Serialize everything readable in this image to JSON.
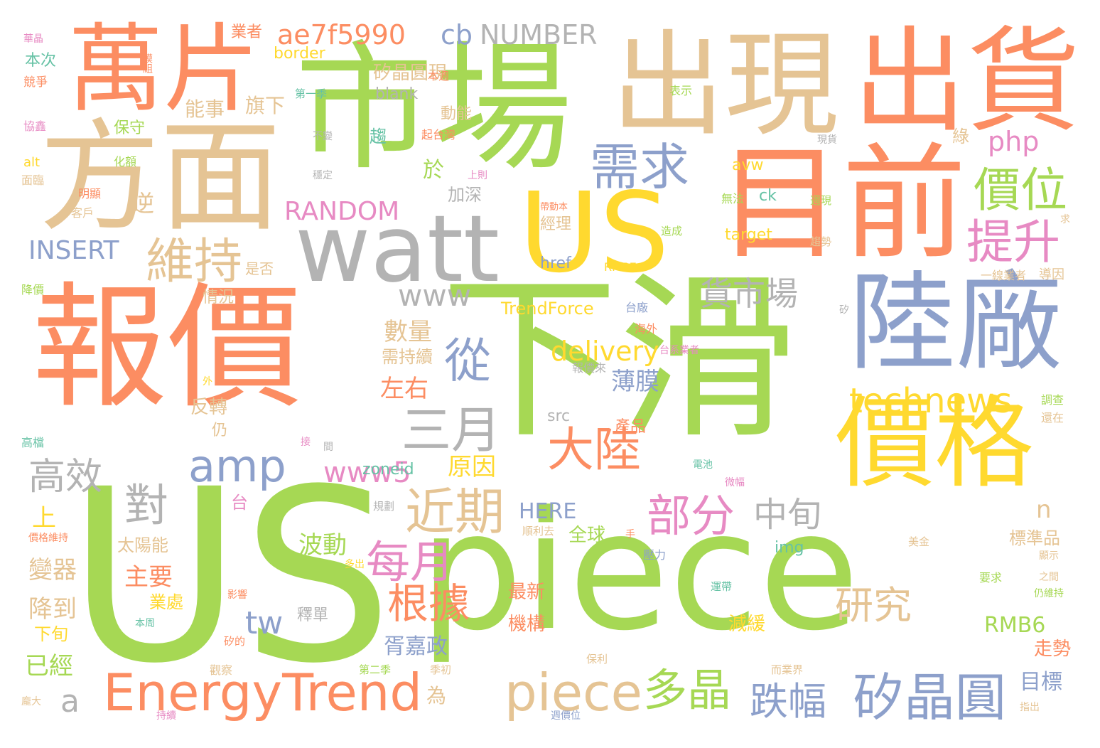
{
  "palette": {
    "orange": "#fc8d62",
    "green": "#a6d854",
    "tan": "#e5c494",
    "blue": "#8da0cb",
    "yellow": "#ffd92f",
    "gray": "#b3b3b3",
    "pink": "#e78ac3",
    "teal": "#66c2a5"
  },
  "words": [
    {
      "text": "US",
      "color": "green"
    },
    {
      "text": "piece",
      "color": "green"
    },
    {
      "text": "報價",
      "color": "orange"
    },
    {
      "text": "下滑",
      "color": "green"
    },
    {
      "text": "市場",
      "color": "green"
    },
    {
      "text": "方面",
      "color": "tan"
    },
    {
      "text": "萬片",
      "color": "orange"
    },
    {
      "text": "出現",
      "color": "tan"
    },
    {
      "text": "出貨",
      "color": "orange"
    },
    {
      "text": "目前",
      "color": "orange"
    },
    {
      "text": "US",
      "color": "yellow"
    },
    {
      "text": "watt",
      "color": "gray"
    },
    {
      "text": "陸廠",
      "color": "blue"
    },
    {
      "text": "價格",
      "color": "yellow"
    },
    {
      "text": "EnergyTrend",
      "color": "orange"
    },
    {
      "text": "piece",
      "color": "tan"
    },
    {
      "text": "矽晶圓",
      "color": "blue"
    },
    {
      "text": "需求",
      "color": "blue"
    },
    {
      "text": "價位",
      "color": "green"
    },
    {
      "text": "提升",
      "color": "pink"
    },
    {
      "text": "維持",
      "color": "tan"
    },
    {
      "text": "www",
      "color": "gray"
    },
    {
      "text": "貨市場",
      "color": "gray"
    },
    {
      "text": "從",
      "color": "blue"
    },
    {
      "text": "三月",
      "color": "gray"
    },
    {
      "text": "amp",
      "color": "blue"
    },
    {
      "text": "大陸",
      "color": "orange"
    },
    {
      "text": "近期",
      "color": "tan"
    },
    {
      "text": "部分",
      "color": "pink"
    },
    {
      "text": "每月",
      "color": "pink"
    },
    {
      "text": "根據",
      "color": "orange"
    },
    {
      "text": "多晶",
      "color": "green"
    },
    {
      "text": "跌幅",
      "color": "blue"
    },
    {
      "text": "technews",
      "color": "yellow"
    },
    {
      "text": "delivery",
      "color": "yellow"
    },
    {
      "text": "研究",
      "color": "tan"
    },
    {
      "text": "中旬",
      "color": "gray"
    },
    {
      "text": "高效",
      "color": "gray"
    },
    {
      "text": "對",
      "color": "gray"
    },
    {
      "text": "www5",
      "color": "pink"
    },
    {
      "text": "ae7f5990",
      "color": "orange"
    },
    {
      "text": "cb",
      "color": "blue"
    },
    {
      "text": "NUMBER",
      "color": "gray"
    },
    {
      "text": "RANDOM",
      "color": "pink"
    },
    {
      "text": "INSERT",
      "color": "blue"
    },
    {
      "text": "php",
      "color": "pink"
    },
    {
      "text": "tw",
      "color": "blue"
    },
    {
      "text": "a",
      "color": "gray"
    },
    {
      "text": "數量",
      "color": "tan"
    },
    {
      "text": "左右",
      "color": "orange"
    },
    {
      "text": "薄膜",
      "color": "blue"
    },
    {
      "text": "原因",
      "color": "yellow"
    },
    {
      "text": "波動",
      "color": "green"
    },
    {
      "text": "主要",
      "color": "orange"
    },
    {
      "text": "降到",
      "color": "tan"
    },
    {
      "text": "已經",
      "color": "green"
    },
    {
      "text": "胥嘉政",
      "color": "blue"
    },
    {
      "text": "變器",
      "color": "tan"
    },
    {
      "text": "太陽能",
      "color": "tan"
    },
    {
      "text": "RMB6",
      "color": "green"
    },
    {
      "text": "目標",
      "color": "blue"
    },
    {
      "text": "HERE",
      "color": "blue"
    },
    {
      "text": "標準品",
      "color": "tan"
    },
    {
      "text": "TrendForce",
      "color": "yellow"
    },
    {
      "text": "zoneid",
      "color": "teal"
    },
    {
      "text": "反轉",
      "color": "tan"
    },
    {
      "text": "全球",
      "color": "green"
    },
    {
      "text": "最新",
      "color": "orange"
    },
    {
      "text": "機構",
      "color": "orange"
    },
    {
      "text": "減緩",
      "color": "yellow"
    },
    {
      "text": "走勢",
      "color": "orange"
    },
    {
      "text": "逆",
      "color": "tan"
    },
    {
      "text": "於",
      "color": "green"
    },
    {
      "text": "加深",
      "color": "gray"
    },
    {
      "text": "旗下",
      "color": "tan"
    },
    {
      "text": "能事",
      "color": "tan"
    },
    {
      "text": "保守",
      "color": "green"
    },
    {
      "text": "矽晶圓現",
      "color": "tan"
    },
    {
      "text": "border",
      "color": "yellow"
    },
    {
      "text": "blank",
      "color": "gray"
    },
    {
      "text": "動能",
      "color": "tan"
    },
    {
      "text": "趨",
      "color": "teal"
    },
    {
      "text": "經理",
      "color": "tan"
    },
    {
      "text": "href",
      "color": "blue"
    },
    {
      "text": "avw",
      "color": "yellow"
    },
    {
      "text": "ck",
      "color": "teal"
    },
    {
      "text": "target",
      "color": "yellow"
    },
    {
      "text": "綠",
      "color": "tan"
    },
    {
      "text": "需持續",
      "color": "tan"
    },
    {
      "text": "情況",
      "color": "tan"
    },
    {
      "text": "是否",
      "color": "tan"
    },
    {
      "text": "上",
      "color": "yellow"
    },
    {
      "text": "台",
      "color": "pink"
    },
    {
      "text": "n",
      "color": "tan"
    },
    {
      "text": "img",
      "color": "teal"
    },
    {
      "text": "src",
      "color": "gray"
    },
    {
      "text": "業處",
      "color": "yellow"
    },
    {
      "text": "下旬",
      "color": "yellow"
    },
    {
      "text": "仍",
      "color": "tan"
    },
    {
      "text": "為",
      "color": "tan"
    },
    {
      "text": "產品",
      "color": "orange"
    },
    {
      "text": "釋單",
      "color": "gray"
    },
    {
      "text": "業者",
      "color": "orange"
    },
    {
      "text": "本次",
      "color": "teal"
    },
    {
      "text": "競爭",
      "color": "orange"
    },
    {
      "text": "協鑫",
      "color": "pink"
    },
    {
      "text": "alt",
      "color": "yellow"
    },
    {
      "text": "化額",
      "color": "green"
    },
    {
      "text": "面臨",
      "color": "tan"
    },
    {
      "text": "明顯",
      "color": "orange"
    },
    {
      "text": "客戶",
      "color": "tan"
    },
    {
      "text": "降價",
      "color": "green"
    },
    {
      "text": "高檔",
      "color": "teal"
    },
    {
      "text": "RMB7",
      "color": "yellow"
    },
    {
      "text": "報價來",
      "color": "gray"
    },
    {
      "text": "台廠",
      "color": "blue"
    },
    {
      "text": "海外",
      "color": "orange"
    },
    {
      "text": "台系業者",
      "color": "pink"
    },
    {
      "text": "第一季",
      "color": "teal"
    },
    {
      "text": "表示",
      "color": "green"
    },
    {
      "text": "本週",
      "color": "orange"
    },
    {
      "text": "起台灣",
      "color": "orange"
    },
    {
      "text": "穩定",
      "color": "gray"
    },
    {
      "text": "不變",
      "color": "gray"
    },
    {
      "text": "上則",
      "color": "pink"
    },
    {
      "text": "無法",
      "color": "green"
    },
    {
      "text": "造成",
      "color": "green"
    },
    {
      "text": "週現",
      "color": "green"
    },
    {
      "text": "趨勢",
      "color": "tan"
    },
    {
      "text": "現貨",
      "color": "gray"
    },
    {
      "text": "導因",
      "color": "tan"
    },
    {
      "text": "一線業者",
      "color": "tan"
    },
    {
      "text": "調查",
      "color": "green"
    },
    {
      "text": "還在",
      "color": "tan"
    },
    {
      "text": "美金",
      "color": "tan"
    },
    {
      "text": "顯示",
      "color": "tan"
    },
    {
      "text": "要求",
      "color": "green"
    },
    {
      "text": "之間",
      "color": "tan"
    },
    {
      "text": "仍維持",
      "color": "green"
    },
    {
      "text": "運帶",
      "color": "teal"
    },
    {
      "text": "壓力",
      "color": "blue"
    },
    {
      "text": "微幅",
      "color": "pink"
    },
    {
      "text": "規劃",
      "color": "gray"
    },
    {
      "text": "順利去",
      "color": "tan"
    },
    {
      "text": "價格維持",
      "color": "orange"
    },
    {
      "text": "影響",
      "color": "orange"
    },
    {
      "text": "多出",
      "color": "yellow"
    },
    {
      "text": "本周",
      "color": "teal"
    },
    {
      "text": "矽的",
      "color": "orange"
    },
    {
      "text": "觀察",
      "color": "tan"
    },
    {
      "text": "第二季",
      "color": "green"
    },
    {
      "text": "季初",
      "color": "tan"
    },
    {
      "text": "保利",
      "color": "tan"
    },
    {
      "text": "而業界",
      "color": "tan"
    },
    {
      "text": "週價位",
      "color": "blue"
    },
    {
      "text": "持續",
      "color": "pink"
    },
    {
      "text": "龐大",
      "color": "tan"
    },
    {
      "text": "指出",
      "color": "tan"
    },
    {
      "text": "華晶",
      "color": "pink"
    },
    {
      "text": "模組",
      "color": "orange"
    },
    {
      "text": "電池",
      "color": "teal"
    },
    {
      "text": "接",
      "color": "pink"
    },
    {
      "text": "間",
      "color": "gray"
    },
    {
      "text": "手",
      "color": "orange"
    },
    {
      "text": "外",
      "color": "yellow"
    },
    {
      "text": "矽",
      "color": "gray"
    },
    {
      "text": "帶動本",
      "color": "orange"
    },
    {
      "text": "求",
      "color": "tan"
    }
  ]
}
